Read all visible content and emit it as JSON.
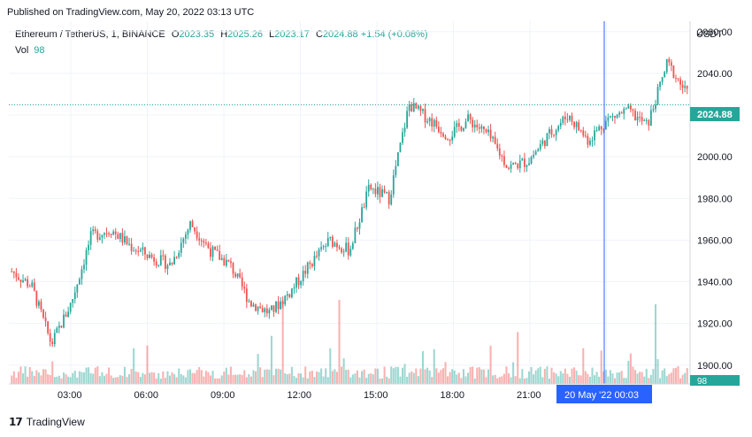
{
  "published": "Published on TradingView.com, May 20, 2022 03:13 UTC",
  "legend": {
    "symbol": "Ethereum / TetherUS, 1, BINANCE",
    "o_label": "O",
    "o": "2023.35",
    "h_label": "H",
    "h": "2025.26",
    "l_label": "L",
    "l": "2023.17",
    "c_label": "C",
    "c": "2024.88",
    "change": "+1.54 (+0.08%)",
    "vol_label": "Vol",
    "vol": "98"
  },
  "currency": "USDT",
  "price_tag": "2024.88",
  "vol_tag": "98",
  "crosshair_label": "20 May '22   00:03",
  "brand": "TradingView",
  "colors": {
    "up": "#26a69a",
    "down": "#ef5350",
    "crosshair": "#2962ff",
    "grid": "#f0f3fa"
  },
  "chart_data": {
    "type": "candlestick",
    "y_ticks": [
      "1900.00",
      "1920.00",
      "1940.00",
      "1960.00",
      "1980.00",
      "2000.00",
      "2020.00",
      "2040.00",
      "2060.00"
    ],
    "x_ticks": [
      "03:00",
      "06:00",
      "09:00",
      "12:00",
      "15:00",
      "18:00",
      "21:00",
      "03:00"
    ],
    "ylim": [
      1891,
      2065
    ],
    "x": [
      "01:30",
      "02:15",
      "03:00",
      "03:45",
      "04:30",
      "05:15",
      "06:00",
      "06:45",
      "07:30",
      "08:15",
      "09:00",
      "09:45",
      "10:30",
      "11:15",
      "12:00",
      "12:45",
      "13:30",
      "14:15",
      "15:00",
      "15:45",
      "16:30",
      "17:15",
      "18:00",
      "18:45",
      "19:30",
      "20:15",
      "21:00",
      "21:45",
      "22:30",
      "23:15",
      "00:00",
      "00:45",
      "01:30",
      "02:15",
      "03:00"
    ],
    "close": [
      1945,
      1938,
      1910,
      1930,
      1962,
      1965,
      1957,
      1952,
      1948,
      1968,
      1955,
      1948,
      1930,
      1925,
      1935,
      1948,
      1960,
      1955,
      1985,
      1980,
      2025,
      2018,
      2010,
      2018,
      2010,
      1995,
      1998,
      2010,
      2020,
      2008,
      2018,
      2022,
      2015,
      2045,
      2030
    ],
    "volume_max_label": "98"
  }
}
